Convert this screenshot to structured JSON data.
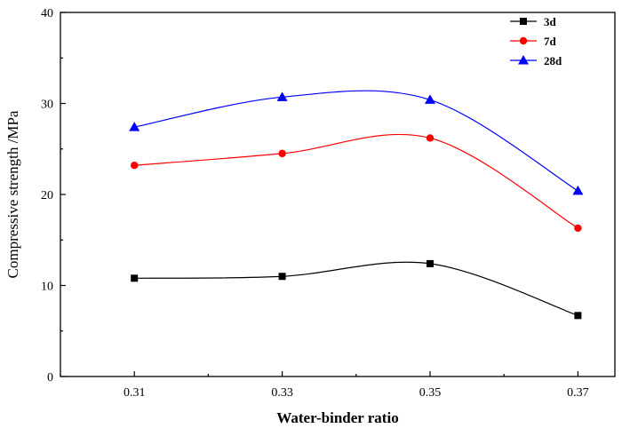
{
  "chart_data": {
    "type": "scatter",
    "xlabel": "Water-binder ratio",
    "ylabel": "Compressive strength /MPa",
    "x": [
      0.31,
      0.33,
      0.35,
      0.37
    ],
    "xticks": [
      "0.31",
      "0.33",
      "0.35",
      "0.37"
    ],
    "xlim": [
      0.3,
      0.375
    ],
    "ylim": [
      0,
      40
    ],
    "yticks": [
      "0",
      "10",
      "20",
      "30",
      "40"
    ],
    "legend_position": "top-right",
    "grid": false,
    "fit_curves": true,
    "series": [
      {
        "name": "3d",
        "color": "#000000",
        "marker": "square",
        "values": [
          10.8,
          11.0,
          12.4,
          6.7
        ]
      },
      {
        "name": "7d",
        "color": "#ff0000",
        "marker": "circle",
        "values": [
          23.2,
          24.5,
          26.2,
          16.3
        ]
      },
      {
        "name": "28d",
        "color": "#0000ff",
        "marker": "triangle",
        "values": [
          27.4,
          30.7,
          30.4,
          20.4
        ]
      }
    ]
  }
}
